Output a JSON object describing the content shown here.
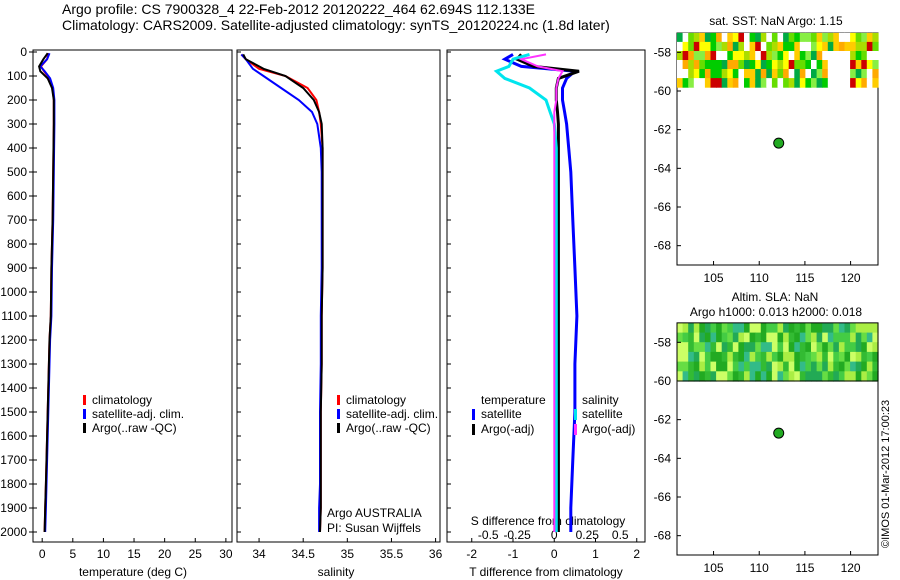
{
  "header": {
    "line1": "Argo profile: CS 7900328_4 22-Feb-2012 20120222_464 62.694S 112.133E",
    "line2": "Climatology: CARS2009. Satellite-adjusted climatology: synTS_20120224.nc (1.8d later)"
  },
  "colors": {
    "climatology": "#ff0000",
    "satellite": "#0000ff",
    "argo": "#000000",
    "sal_satellite": "#00e5ee",
    "sal_argo": "#ff33ff",
    "float_marker": "#22aa22"
  },
  "chart_data": [
    {
      "type": "line",
      "name": "temperature-profile",
      "xlabel": "temperature (deg C)",
      "xlim": [
        -1.5,
        31
      ],
      "xticks": [
        0,
        5,
        10,
        15,
        20,
        25,
        30
      ],
      "ylim": [
        2080,
        0
      ],
      "yticks": [
        0,
        100,
        200,
        300,
        400,
        500,
        600,
        700,
        800,
        900,
        1000,
        1100,
        1200,
        1300,
        1400,
        1500,
        1600,
        1700,
        1800,
        1900,
        2000
      ],
      "legend": [
        "climatology",
        "satellite-adj. clim.",
        "Argo(..raw -QC)"
      ],
      "series": [
        {
          "name": "climatology",
          "x": [
            1.0,
            0.8,
            -0.2,
            0.3,
            1.2,
            1.7,
            1.9,
            1.9,
            1.8,
            1.7,
            1.5,
            1.4,
            1.2,
            1.1,
            0.9,
            0.8,
            0.7,
            0.6,
            0.5,
            0.4
          ],
          "y": [
            5,
            30,
            60,
            80,
            110,
            150,
            200,
            300,
            500,
            700,
            900,
            1100,
            1200,
            1300,
            1500,
            1600,
            1700,
            1800,
            1900,
            2000
          ]
        },
        {
          "name": "satellite-adj. clim.",
          "x": [
            1.2,
            0.8,
            -0.3,
            0.4,
            1.3,
            1.8,
            2.0,
            2.0,
            1.9,
            1.8,
            1.6,
            1.5,
            1.3,
            1.2,
            1.0,
            0.9,
            0.8,
            0.7,
            0.6,
            0.5
          ],
          "y": [
            5,
            30,
            60,
            80,
            110,
            150,
            200,
            300,
            500,
            700,
            900,
            1100,
            1200,
            1300,
            1500,
            1600,
            1700,
            1800,
            1900,
            2000
          ]
        },
        {
          "name": "Argo(..raw -QC)",
          "x": [
            0.9,
            0.2,
            -0.5,
            -0.3,
            0.9,
            1.6,
            1.9,
            1.9,
            1.8,
            1.7,
            1.5,
            1.4,
            1.2,
            1.1,
            0.9,
            0.8,
            0.7,
            0.6,
            0.5,
            0.4
          ],
          "y": [
            5,
            30,
            60,
            80,
            110,
            150,
            200,
            300,
            500,
            700,
            900,
            1100,
            1200,
            1300,
            1500,
            1600,
            1700,
            1800,
            1900,
            2000
          ]
        }
      ]
    },
    {
      "type": "line",
      "name": "salinity-profile",
      "xlabel": "salinity",
      "xlim": [
        33.75,
        36.05
      ],
      "xticks": [
        34,
        34.5,
        35,
        35.5,
        36
      ],
      "xticklabels": [
        "34",
        "34.5",
        "35",
        "35.5",
        "36"
      ],
      "ylim": [
        2080,
        0
      ],
      "legend": [
        "climatology",
        "satellite-adj. clim.",
        "Argo(..raw -QC)"
      ],
      "annotation": [
        "Argo AUSTRALIA",
        "PI: Susan Wijffels"
      ],
      "series": [
        {
          "name": "climatology",
          "x": [
            33.8,
            33.85,
            34.0,
            34.3,
            34.55,
            34.65,
            34.68,
            34.7,
            34.72,
            34.72,
            34.72,
            34.72,
            34.71,
            34.71,
            34.7,
            34.7,
            34.7,
            34.7,
            34.69
          ],
          "y": [
            10,
            30,
            70,
            100,
            150,
            200,
            250,
            300,
            400,
            500,
            700,
            900,
            1100,
            1300,
            1500,
            1700,
            1800,
            1900,
            2000
          ]
        },
        {
          "name": "satellite-adj. clim.",
          "x": [
            33.8,
            33.85,
            33.93,
            34.05,
            34.25,
            34.45,
            34.6,
            34.66,
            34.7,
            34.71,
            34.71,
            34.71,
            34.7,
            34.7,
            34.69,
            34.69,
            34.69,
            34.68,
            34.68
          ],
          "y": [
            10,
            30,
            70,
            100,
            150,
            200,
            250,
            300,
            400,
            500,
            700,
            900,
            1100,
            1300,
            1500,
            1700,
            1800,
            1900,
            2000
          ]
        },
        {
          "name": "Argo(..raw -QC)",
          "x": [
            33.82,
            33.85,
            34.05,
            34.3,
            34.5,
            34.62,
            34.68,
            34.71,
            34.72,
            34.72,
            34.72,
            34.72,
            34.71,
            34.71,
            34.7,
            34.7,
            34.7,
            34.7,
            34.69
          ],
          "y": [
            10,
            30,
            70,
            100,
            150,
            200,
            250,
            300,
            400,
            500,
            700,
            900,
            1100,
            1300,
            1500,
            1700,
            1800,
            1900,
            2000
          ]
        }
      ]
    },
    {
      "type": "line",
      "name": "difference-profile",
      "xlabel": "T difference from climatology",
      "xlim": [
        -2.6,
        2.2
      ],
      "xticks": [
        -2,
        -1,
        0,
        1,
        2
      ],
      "top_label": "S difference from climatology",
      "top_ticks": [
        "-0.5",
        "-0.25",
        "0",
        "0.25",
        "0.5"
      ],
      "top_tick_values": [
        -1.6,
        -0.9,
        0,
        0.8,
        1.6
      ],
      "ylim": [
        2080,
        0
      ],
      "legend_title_t": "temperature",
      "legend_title_s": "salinity",
      "legend_t": [
        "satellite",
        "Argo(-adj)"
      ],
      "legend_s": [
        "satellite",
        "Argo(-adj)"
      ],
      "series": [
        {
          "name": "temperature satellite",
          "x": [
            -1.0,
            -1.2,
            -0.8,
            0.5,
            0.3,
            0.2,
            0.2,
            0.25,
            0.3,
            0.35,
            0.4,
            0.45,
            0.5,
            0.55,
            0.5,
            0.5,
            0.45,
            0.4,
            0.4
          ],
          "y": [
            10,
            30,
            60,
            80,
            110,
            150,
            200,
            250,
            300,
            400,
            500,
            700,
            900,
            1100,
            1300,
            1500,
            1700,
            1900,
            2000
          ]
        },
        {
          "name": "temperature Argo(-adj)",
          "x": [
            -0.8,
            -0.9,
            -0.5,
            0.6,
            0.1,
            0.05,
            0.05,
            0.08,
            0.1,
            0.1,
            0.1,
            0.1,
            0.1,
            0.1,
            0.1,
            0.1,
            0.1,
            0.1,
            0.1
          ],
          "y": [
            10,
            30,
            60,
            80,
            110,
            150,
            200,
            250,
            300,
            400,
            500,
            700,
            900,
            1100,
            1300,
            1500,
            1700,
            1900,
            2000
          ]
        },
        {
          "name": "salinity satellite",
          "x": [
            -0.6,
            -1.0,
            -1.1,
            -1.4,
            -1.2,
            -0.6,
            -0.2,
            -0.1,
            0.0,
            0.05,
            0.05,
            0.05,
            0.05,
            0.05,
            0.05,
            0.05,
            0.05,
            0.05,
            0.05
          ],
          "y": [
            10,
            30,
            60,
            80,
            110,
            150,
            200,
            250,
            300,
            400,
            500,
            700,
            900,
            1100,
            1300,
            1500,
            1700,
            1900,
            2000
          ]
        },
        {
          "name": "salinity Argo(-adj)",
          "x": [
            -0.2,
            -0.8,
            -0.4,
            0.2,
            0.1,
            0.05,
            0.05,
            0.0,
            0.0,
            0.0,
            0.0,
            0.0,
            0.0,
            0.0,
            0.0,
            0.0,
            0.0,
            0.0,
            0.0
          ],
          "y": [
            10,
            30,
            60,
            80,
            110,
            150,
            200,
            250,
            300,
            400,
            500,
            700,
            900,
            1100,
            1300,
            1500,
            1700,
            1900,
            2000
          ]
        }
      ]
    },
    {
      "type": "heatmap",
      "name": "sst-map",
      "title": "sat. SST: NaN Argo: 1.15",
      "xlim": [
        101,
        123
      ],
      "ylim": [
        -69,
        -57
      ],
      "xticks": [
        105,
        110,
        115,
        120
      ],
      "yticks": [
        -58,
        -60,
        -62,
        -64,
        -66,
        -68
      ],
      "data_rows": [
        -57.2,
        -59.8
      ],
      "marker": {
        "lon": 112.133,
        "lat": -62.694
      }
    },
    {
      "type": "heatmap",
      "name": "sla-map",
      "title_line1": "Altim. SLA: NaN",
      "title_line2": "Argo h1000: 0.013 h2000: 0.018",
      "xlim": [
        101,
        123
      ],
      "ylim": [
        -69,
        -57
      ],
      "xticks": [
        105,
        110,
        115,
        120
      ],
      "yticks": [
        -58,
        -60,
        -62,
        -64,
        -66,
        -68
      ],
      "data_rows": [
        -57.2,
        -60.0
      ],
      "marker": {
        "lon": 112.133,
        "lat": -62.694
      }
    }
  ],
  "credit": "©IMOS 01-Mar-2012 17:00:23"
}
